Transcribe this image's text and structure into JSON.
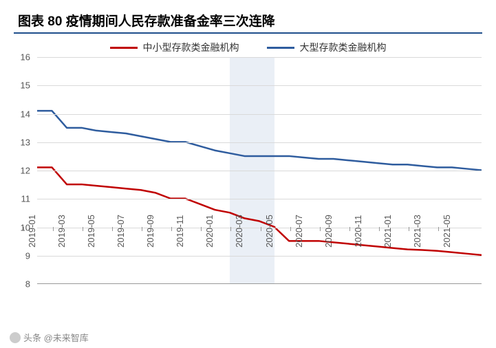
{
  "title": "图表 80 疫情期间人民存款准备金率三次连降",
  "legend": {
    "series1_label": "中小型存款类金融机构",
    "series2_label": "大型存款类金融机构",
    "series1_color": "#c00000",
    "series2_color": "#2e5c9e"
  },
  "chart": {
    "type": "line",
    "background_color": "#ffffff",
    "grid_color": "#d9d9d9",
    "axis_color": "#999999",
    "shade_color": "#d8e1ef",
    "title_border_color": "#1f4e8c",
    "ylim": [
      8,
      16
    ],
    "ytick_step": 1,
    "yticks": [
      8,
      9,
      10,
      11,
      12,
      13,
      14,
      15,
      16
    ],
    "xticks": [
      "2019-01",
      "2019-03",
      "2019-05",
      "2019-07",
      "2019-09",
      "2019-11",
      "2020-01",
      "2020-03",
      "2020-05",
      "2020-07",
      "2020-09",
      "2020-11",
      "2021-01",
      "2021-03",
      "2021-05"
    ],
    "x_n": 31,
    "shade_band": {
      "start_i": 13,
      "end_i": 16
    },
    "line_width": 2.5,
    "series1": {
      "color": "#c00000",
      "y": [
        12.1,
        12.1,
        11.5,
        11.5,
        11.45,
        11.4,
        11.35,
        11.3,
        11.2,
        11.0,
        11.0,
        10.8,
        10.6,
        10.5,
        10.3,
        10.2,
        10.0,
        9.5,
        9.5,
        9.5,
        9.45,
        9.4,
        9.35,
        9.3,
        9.25,
        9.2,
        9.18,
        9.15,
        9.1,
        9.05,
        9.0
      ]
    },
    "series2": {
      "color": "#2e5c9e",
      "y": [
        14.1,
        14.1,
        13.5,
        13.5,
        13.4,
        13.35,
        13.3,
        13.2,
        13.1,
        13.0,
        13.0,
        12.85,
        12.7,
        12.6,
        12.5,
        12.5,
        12.5,
        12.5,
        12.45,
        12.4,
        12.4,
        12.35,
        12.3,
        12.25,
        12.2,
        12.2,
        12.15,
        12.1,
        12.1,
        12.05,
        12.0
      ]
    }
  },
  "source": {
    "label": "头条 @未来智库"
  }
}
